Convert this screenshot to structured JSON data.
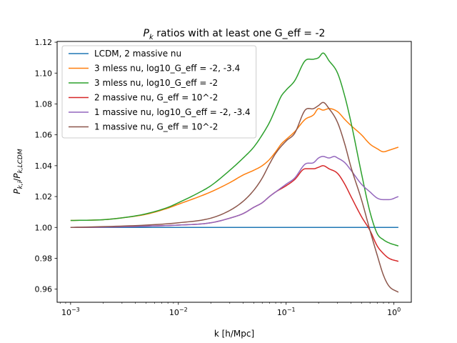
{
  "chart_data": {
    "type": "line",
    "title": "P_k ratios with at least one G_eff = -2",
    "title_symbol": "P",
    "title_subscript": "k",
    "title_rest": " ratios with at least one G_eff = -2",
    "xlabel": "k [h/Mpc]",
    "ylabel": "P_{k,i}/P_{k,LCDM}",
    "xscale": "log",
    "xlim": [
      0.00075,
      1.45
    ],
    "ylim": [
      0.9515,
      1.1205
    ],
    "xticks": [
      {
        "value": 0.001,
        "base": "10",
        "exp": "−3"
      },
      {
        "value": 0.01,
        "base": "10",
        "exp": "−2"
      },
      {
        "value": 0.1,
        "base": "10",
        "exp": "−1"
      },
      {
        "value": 1,
        "base": "10",
        "exp": "0"
      }
    ],
    "yticks": [
      {
        "value": 0.96,
        "label": "0.96"
      },
      {
        "value": 0.98,
        "label": "0.98"
      },
      {
        "value": 1.0,
        "label": "1.00"
      },
      {
        "value": 1.02,
        "label": "1.02"
      },
      {
        "value": 1.04,
        "label": "1.04"
      },
      {
        "value": 1.06,
        "label": "1.06"
      },
      {
        "value": 1.08,
        "label": "1.08"
      },
      {
        "value": 1.1,
        "label": "1.10"
      },
      {
        "value": 1.12,
        "label": "1.12"
      }
    ],
    "grid": false,
    "legend_position": "top-left",
    "series": [
      {
        "name": "LCDM, 2 massive nu",
        "color": "#1f77b4",
        "points": [
          [
            0.001,
            1.0
          ],
          [
            1.1,
            1.0
          ]
        ]
      },
      {
        "name": "3 mless nu, log10_G_eff = -2, -3.4",
        "color": "#ff7f0e",
        "points": [
          [
            0.001,
            1.0045
          ],
          [
            0.002,
            1.005
          ],
          [
            0.003,
            1.0062
          ],
          [
            0.005,
            1.0085
          ],
          [
            0.008,
            1.0125
          ],
          [
            0.01,
            1.015
          ],
          [
            0.015,
            1.0195
          ],
          [
            0.02,
            1.023
          ],
          [
            0.03,
            1.029
          ],
          [
            0.04,
            1.034
          ],
          [
            0.05,
            1.037
          ],
          [
            0.06,
            1.04
          ],
          [
            0.07,
            1.044
          ],
          [
            0.08,
            1.049
          ],
          [
            0.09,
            1.054
          ],
          [
            0.1,
            1.057
          ],
          [
            0.12,
            1.062
          ],
          [
            0.15,
            1.07
          ],
          [
            0.18,
            1.073
          ],
          [
            0.2,
            1.077
          ],
          [
            0.22,
            1.076
          ],
          [
            0.25,
            1.077
          ],
          [
            0.3,
            1.075
          ],
          [
            0.35,
            1.07
          ],
          [
            0.4,
            1.066
          ],
          [
            0.5,
            1.06
          ],
          [
            0.6,
            1.054
          ],
          [
            0.7,
            1.051
          ],
          [
            0.8,
            1.049
          ],
          [
            0.9,
            1.05
          ],
          [
            1.1,
            1.052
          ]
        ]
      },
      {
        "name": "3 mless nu, log10_G_eff = -2",
        "color": "#2ca02c",
        "points": [
          [
            0.001,
            1.0045
          ],
          [
            0.002,
            1.005
          ],
          [
            0.003,
            1.0062
          ],
          [
            0.005,
            1.0088
          ],
          [
            0.008,
            1.013
          ],
          [
            0.01,
            1.016
          ],
          [
            0.015,
            1.022
          ],
          [
            0.02,
            1.027
          ],
          [
            0.03,
            1.037
          ],
          [
            0.04,
            1.045
          ],
          [
            0.05,
            1.052
          ],
          [
            0.06,
            1.06
          ],
          [
            0.07,
            1.068
          ],
          [
            0.08,
            1.077
          ],
          [
            0.09,
            1.085
          ],
          [
            0.1,
            1.089
          ],
          [
            0.12,
            1.095
          ],
          [
            0.15,
            1.108
          ],
          [
            0.18,
            1.109
          ],
          [
            0.2,
            1.11
          ],
          [
            0.22,
            1.113
          ],
          [
            0.25,
            1.108
          ],
          [
            0.3,
            1.1
          ],
          [
            0.35,
            1.085
          ],
          [
            0.4,
            1.068
          ],
          [
            0.5,
            1.035
          ],
          [
            0.6,
            1.01
          ],
          [
            0.7,
            0.996
          ],
          [
            0.8,
            0.992
          ],
          [
            0.9,
            0.99
          ],
          [
            1.1,
            0.988
          ]
        ]
      },
      {
        "name": "2 massive nu, G_eff = 10^-2",
        "color": "#d62728",
        "points": [
          [
            0.001,
            1.0
          ],
          [
            0.002,
            1.0002
          ],
          [
            0.005,
            1.0008
          ],
          [
            0.01,
            1.0015
          ],
          [
            0.02,
            1.003
          ],
          [
            0.03,
            1.006
          ],
          [
            0.04,
            1.009
          ],
          [
            0.05,
            1.013
          ],
          [
            0.06,
            1.016
          ],
          [
            0.07,
            1.02
          ],
          [
            0.08,
            1.023
          ],
          [
            0.1,
            1.027
          ],
          [
            0.12,
            1.031
          ],
          [
            0.15,
            1.038
          ],
          [
            0.18,
            1.038
          ],
          [
            0.2,
            1.039
          ],
          [
            0.22,
            1.04
          ],
          [
            0.25,
            1.038
          ],
          [
            0.3,
            1.035
          ],
          [
            0.35,
            1.028
          ],
          [
            0.4,
            1.02
          ],
          [
            0.5,
            1.007
          ],
          [
            0.6,
            0.998
          ],
          [
            0.7,
            0.988
          ],
          [
            0.8,
            0.983
          ],
          [
            0.9,
            0.98
          ],
          [
            1.1,
            0.978
          ]
        ]
      },
      {
        "name": "1 massive nu, log10_G_eff = -2, -3.4",
        "color": "#9467bd",
        "points": [
          [
            0.001,
            1.0
          ],
          [
            0.002,
            1.0002
          ],
          [
            0.005,
            1.0008
          ],
          [
            0.01,
            1.0015
          ],
          [
            0.02,
            1.003
          ],
          [
            0.03,
            1.006
          ],
          [
            0.04,
            1.009
          ],
          [
            0.05,
            1.013
          ],
          [
            0.06,
            1.016
          ],
          [
            0.07,
            1.02
          ],
          [
            0.08,
            1.023
          ],
          [
            0.1,
            1.028
          ],
          [
            0.12,
            1.032
          ],
          [
            0.15,
            1.041
          ],
          [
            0.18,
            1.042
          ],
          [
            0.2,
            1.045
          ],
          [
            0.22,
            1.046
          ],
          [
            0.25,
            1.045
          ],
          [
            0.28,
            1.046
          ],
          [
            0.3,
            1.045
          ],
          [
            0.35,
            1.042
          ],
          [
            0.4,
            1.037
          ],
          [
            0.5,
            1.028
          ],
          [
            0.6,
            1.023
          ],
          [
            0.7,
            1.019
          ],
          [
            0.8,
            1.018
          ],
          [
            0.9,
            1.018
          ],
          [
            1.1,
            1.02
          ]
        ]
      },
      {
        "name": "1 massive nu, G_eff = 10^-2",
        "color": "#8c564b",
        "points": [
          [
            0.001,
            1.0
          ],
          [
            0.002,
            1.0005
          ],
          [
            0.005,
            1.0015
          ],
          [
            0.01,
            1.003
          ],
          [
            0.02,
            1.006
          ],
          [
            0.03,
            1.011
          ],
          [
            0.04,
            1.017
          ],
          [
            0.05,
            1.024
          ],
          [
            0.06,
            1.032
          ],
          [
            0.07,
            1.041
          ],
          [
            0.08,
            1.048
          ],
          [
            0.1,
            1.056
          ],
          [
            0.12,
            1.061
          ],
          [
            0.15,
            1.076
          ],
          [
            0.18,
            1.077
          ],
          [
            0.2,
            1.079
          ],
          [
            0.22,
            1.081
          ],
          [
            0.25,
            1.077
          ],
          [
            0.3,
            1.068
          ],
          [
            0.35,
            1.054
          ],
          [
            0.4,
            1.039
          ],
          [
            0.5,
            1.018
          ],
          [
            0.6,
            0.998
          ],
          [
            0.7,
            0.982
          ],
          [
            0.8,
            0.969
          ],
          [
            0.9,
            0.962
          ],
          [
            1.1,
            0.958
          ]
        ]
      }
    ]
  }
}
